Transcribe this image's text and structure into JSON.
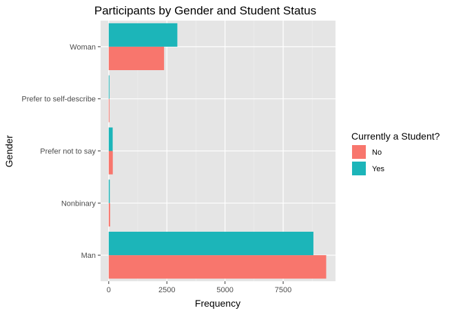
{
  "chart_data": {
    "type": "bar",
    "orientation": "horizontal",
    "title": "Participants by Gender and Student Status",
    "xlabel": "Frequency",
    "ylabel": "Gender",
    "categories": [
      "Man",
      "Nonbinary",
      "Prefer not to say",
      "Prefer to self-describe",
      "Woman"
    ],
    "series": [
      {
        "name": "No",
        "color": "#F8766D",
        "values": [
          9350,
          60,
          175,
          30,
          2380
        ]
      },
      {
        "name": "Yes",
        "color": "#1CB5B9",
        "values": [
          8800,
          45,
          170,
          25,
          2950
        ]
      }
    ],
    "xlim": [
      -350,
      9750
    ],
    "xticks": [
      0,
      2500,
      5000,
      7500
    ],
    "xtick_labels": [
      "0",
      "2500",
      "5000",
      "7500"
    ],
    "grid": true,
    "legend": {
      "title": "Currently a Student?",
      "placement": "right",
      "entries": [
        "No",
        "Yes"
      ]
    },
    "colors": {
      "panel": "#E5E5E5",
      "grid_major": "#FFFFFF",
      "grid_minor": "#F0F0F0",
      "axis_text": "#4D4D4D"
    }
  }
}
